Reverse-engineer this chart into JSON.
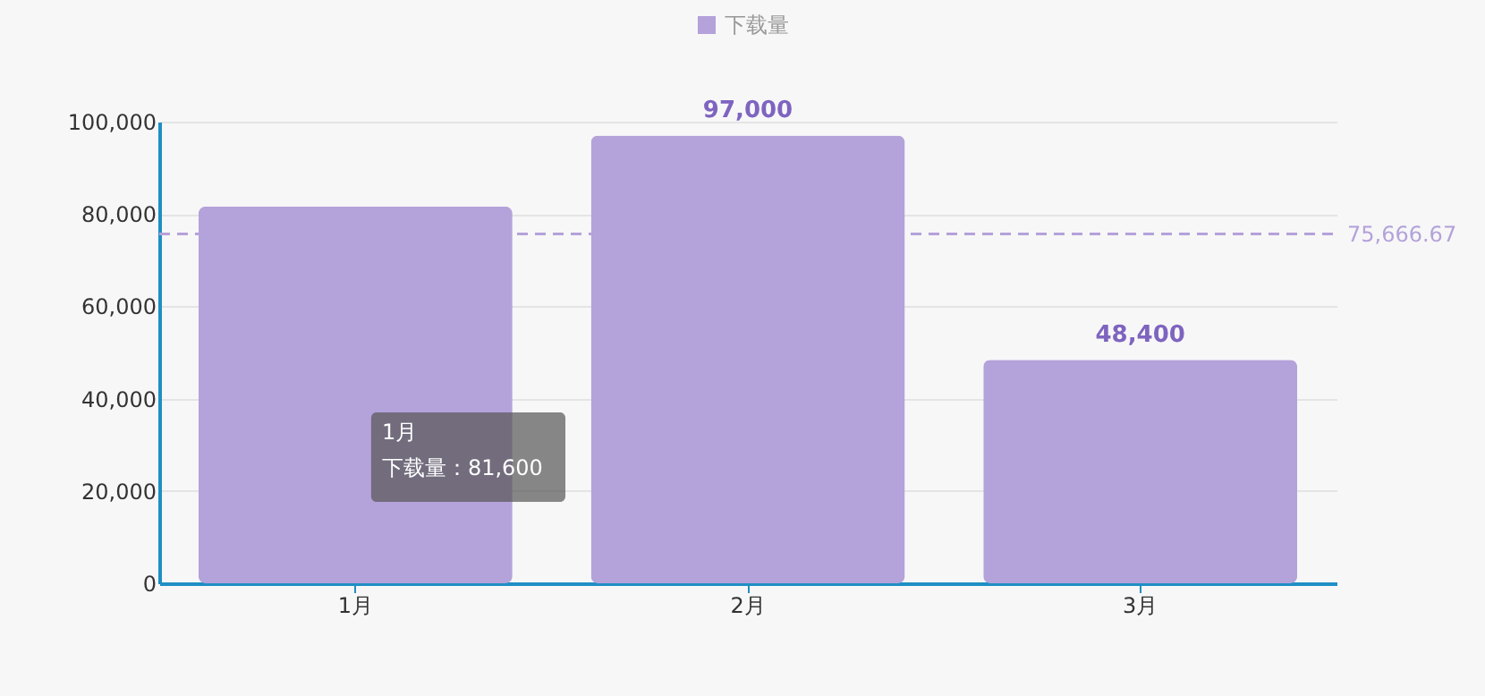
{
  "chart_data": {
    "type": "bar",
    "categories": [
      "1月",
      "2月",
      "3月"
    ],
    "series": [
      {
        "name": "下载量",
        "color": "#b4a2da",
        "values": [
          81600,
          97000,
          48400
        ],
        "value_labels": [
          null,
          "97,000",
          "48,400"
        ]
      }
    ],
    "ylim": [
      0,
      100000
    ],
    "yticks": [
      {
        "value": 0,
        "label": "0"
      },
      {
        "value": 20000,
        "label": "20,000"
      },
      {
        "value": 40000,
        "label": "40,000"
      },
      {
        "value": 60000,
        "label": "60,000"
      },
      {
        "value": 80000,
        "label": "80,000"
      },
      {
        "value": 100000,
        "label": "100,000"
      }
    ],
    "ref_lines": [
      {
        "axis": "y",
        "value": 75666.67,
        "label": "75,666.67",
        "color": "#b4a2da",
        "line_style": "dashed"
      }
    ],
    "annotations": [
      "1月",
      "下载量：81,600"
    ],
    "grid": "y",
    "legend": "top"
  }
}
